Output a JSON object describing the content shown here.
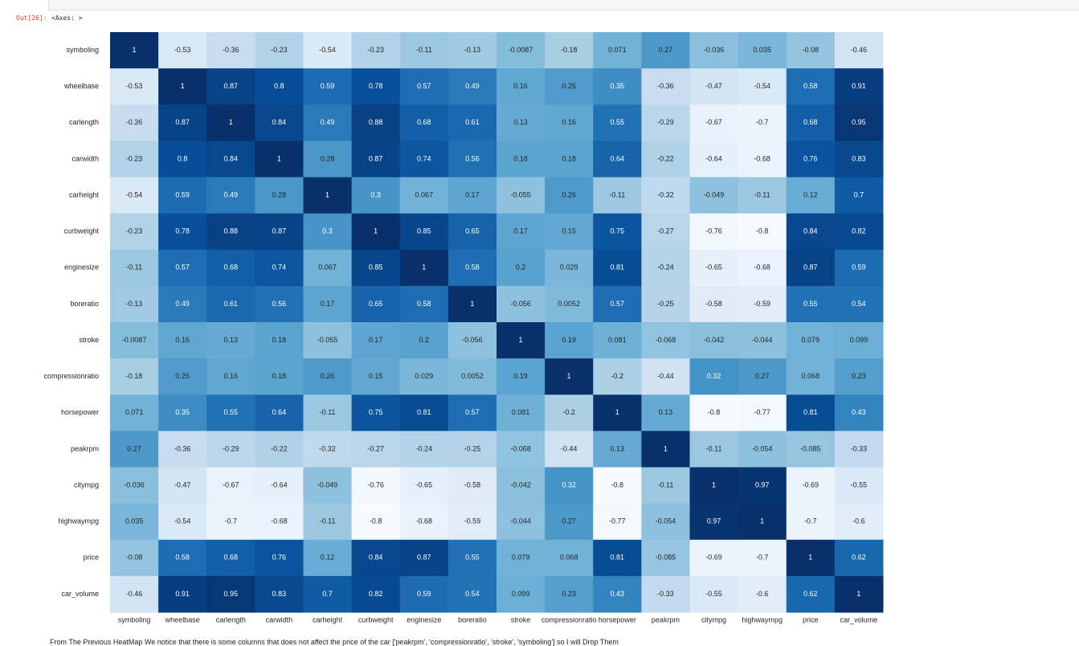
{
  "prompt": "Out[26]:",
  "output_text": "<Axes: >",
  "chart_data": {
    "type": "heatmap",
    "xcategories": [
      "symboling",
      "wheelbase",
      "carlength",
      "carwidth",
      "carheight",
      "curbweight",
      "enginesize",
      "boreratio",
      "stroke",
      "compressionratio",
      "horsepower",
      "peakrpm",
      "citympg",
      "highwaympg",
      "price",
      "car_volume"
    ],
    "ycategories": [
      "symboling",
      "wheelbase",
      "carlength",
      "carwidth",
      "carheight",
      "curbweight",
      "enginesize",
      "boreratio",
      "stroke",
      "compressionratio",
      "horsepower",
      "peakrpm",
      "citympg",
      "highwaympg",
      "price",
      "car_volume"
    ],
    "colormap": [
      "#f7fbff",
      "#deebf7",
      "#c6dbef",
      "#9ecae1",
      "#6baed6",
      "#4292c6",
      "#2171b5",
      "#08519c",
      "#08306b"
    ],
    "matrix": [
      [
        1,
        -0.53,
        -0.36,
        -0.23,
        -0.54,
        -0.23,
        -0.11,
        -0.13,
        -0.0087,
        -0.18,
        0.071,
        0.27,
        -0.036,
        0.035,
        -0.08,
        -0.46
      ],
      [
        -0.53,
        1,
        0.87,
        0.8,
        0.59,
        0.78,
        0.57,
        0.49,
        0.16,
        0.25,
        0.35,
        -0.36,
        -0.47,
        -0.54,
        0.58,
        0.91
      ],
      [
        -0.36,
        0.87,
        1,
        0.84,
        0.49,
        0.88,
        0.68,
        0.61,
        0.13,
        0.16,
        0.55,
        -0.29,
        -0.67,
        -0.7,
        0.68,
        0.95
      ],
      [
        -0.23,
        0.8,
        0.84,
        1,
        0.28,
        0.87,
        0.74,
        0.56,
        0.18,
        0.18,
        0.64,
        -0.22,
        -0.64,
        -0.68,
        0.76,
        0.83
      ],
      [
        -0.54,
        0.59,
        0.49,
        0.28,
        1,
        0.3,
        0.067,
        0.17,
        -0.055,
        0.26,
        -0.11,
        -0.32,
        -0.049,
        -0.11,
        0.12,
        0.7
      ],
      [
        -0.23,
        0.78,
        0.88,
        0.87,
        0.3,
        1,
        0.85,
        0.65,
        0.17,
        0.15,
        0.75,
        -0.27,
        -0.76,
        -0.8,
        0.84,
        0.82
      ],
      [
        -0.11,
        0.57,
        0.68,
        0.74,
        0.067,
        0.85,
        1,
        0.58,
        0.2,
        0.029,
        0.81,
        -0.24,
        -0.65,
        -0.68,
        0.87,
        0.59
      ],
      [
        -0.13,
        0.49,
        0.61,
        0.56,
        0.17,
        0.65,
        0.58,
        1,
        -0.056,
        0.0052,
        0.57,
        -0.25,
        -0.58,
        -0.59,
        0.55,
        0.54
      ],
      [
        -0.0087,
        0.16,
        0.13,
        0.18,
        -0.055,
        0.17,
        0.2,
        -0.056,
        1,
        0.19,
        0.081,
        -0.068,
        -0.042,
        -0.044,
        0.079,
        0.099
      ],
      [
        -0.18,
        0.25,
        0.16,
        0.18,
        0.26,
        0.15,
        0.029,
        0.0052,
        0.19,
        1,
        -0.2,
        -0.44,
        0.32,
        0.27,
        0.068,
        0.23
      ],
      [
        0.071,
        0.35,
        0.55,
        0.64,
        -0.11,
        0.75,
        0.81,
        0.57,
        0.081,
        -0.2,
        1,
        0.13,
        -0.8,
        -0.77,
        0.81,
        0.43
      ],
      [
        0.27,
        -0.36,
        -0.29,
        -0.22,
        -0.32,
        -0.27,
        -0.24,
        -0.25,
        -0.068,
        -0.44,
        0.13,
        1,
        -0.11,
        -0.054,
        -0.085,
        -0.33
      ],
      [
        -0.036,
        -0.47,
        -0.67,
        -0.64,
        -0.049,
        -0.76,
        -0.65,
        -0.58,
        -0.042,
        0.32,
        -0.8,
        -0.11,
        1,
        0.97,
        -0.69,
        -0.55
      ],
      [
        0.035,
        -0.54,
        -0.7,
        -0.68,
        -0.11,
        -0.8,
        -0.68,
        -0.59,
        -0.044,
        0.27,
        -0.77,
        -0.054,
        0.97,
        1,
        -0.7,
        -0.6
      ],
      [
        -0.08,
        0.58,
        0.68,
        0.76,
        0.12,
        0.84,
        0.87,
        0.55,
        0.079,
        0.068,
        0.81,
        -0.085,
        -0.69,
        -0.7,
        1,
        0.62
      ],
      [
        -0.46,
        0.91,
        0.95,
        0.83,
        0.7,
        0.82,
        0.59,
        0.54,
        0.099,
        0.23,
        0.43,
        -0.33,
        -0.55,
        -0.6,
        0.62,
        1
      ]
    ]
  },
  "footer_text": "From The Previous HeatMap We notice that there is some columns that does not affect the price of the car ['peakrpm', 'compressionratio', 'stroke', 'symboling'] so I will Drop Them"
}
